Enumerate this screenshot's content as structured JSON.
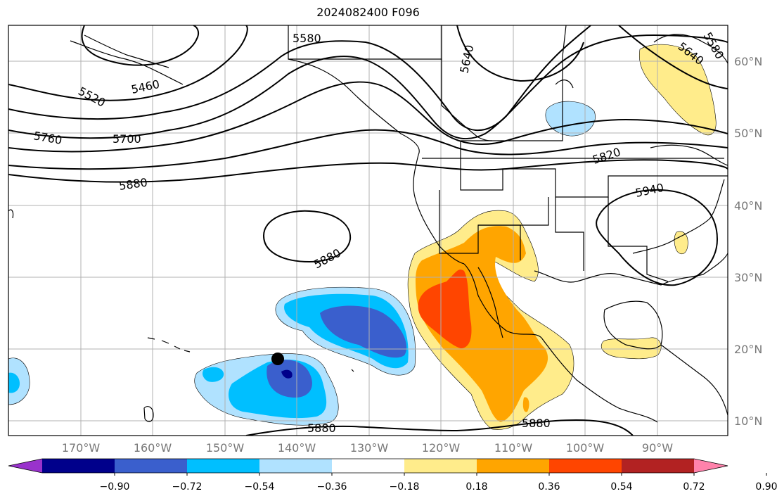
{
  "title": "2024082400 F096",
  "lon_labels": [
    "170°W",
    "160°W",
    "150°W",
    "140°W",
    "130°W",
    "120°W",
    "110°W",
    "100°W",
    "90°W"
  ],
  "lat_labels": [
    "60°N",
    "50°N",
    "40°N",
    "30°N",
    "20°N",
    "10°N"
  ],
  "contour_labels": [
    "5580",
    "5640",
    "5460",
    "5520",
    "5760",
    "5700",
    "5820",
    "5880",
    "5940",
    "5880",
    "5880",
    "5880",
    "5640",
    "5580"
  ],
  "colorbar": {
    "ticks": [
      "−0.90",
      "−0.72",
      "−0.54",
      "−0.36",
      "−0.18",
      "0.18",
      "0.36",
      "0.54",
      "0.72",
      "0.90"
    ],
    "colors": [
      "#9932cc",
      "#00008b",
      "#3a5fcd",
      "#00bfff",
      "#b0e2ff",
      "#ffffff",
      "#ffec8b",
      "#ffa500",
      "#ff4500",
      "#b22222",
      "#ff82ab"
    ]
  },
  "marker_label": ""
}
